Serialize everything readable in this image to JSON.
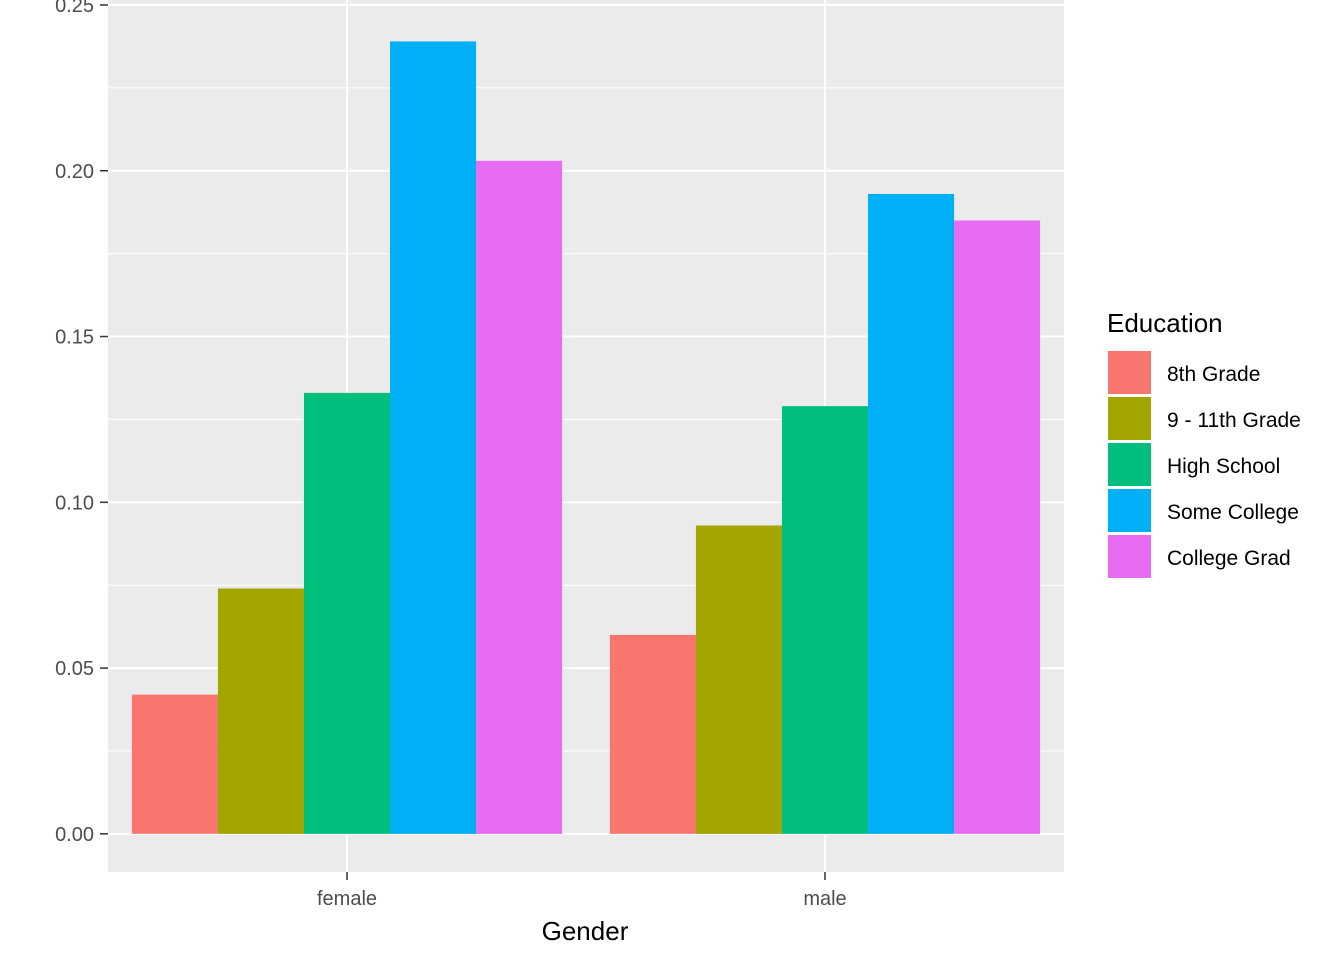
{
  "chart_data": {
    "type": "bar",
    "title": "",
    "xlabel": "Gender",
    "ylabel": "",
    "categories": [
      "female",
      "male"
    ],
    "ylim": [
      -0.0115,
      0.2515
    ],
    "yticks": [
      "0.00",
      "0.05",
      "0.10",
      "0.15",
      "0.20",
      "0.25"
    ],
    "ytick_values": [
      0,
      0.05,
      0.1,
      0.15,
      0.2,
      0.25
    ],
    "grid": true,
    "legend": {
      "title": "Education",
      "position": "right"
    },
    "series": [
      {
        "name": "8th Grade",
        "color": "#F8766D",
        "values": [
          0.042,
          0.06
        ]
      },
      {
        "name": "9 - 11th Grade",
        "color": "#A3A500",
        "values": [
          0.074,
          0.093
        ]
      },
      {
        "name": "High School",
        "color": "#00BF7D",
        "values": [
          0.133,
          0.129
        ]
      },
      {
        "name": "Some College",
        "color": "#00B0F6",
        "values": [
          0.239,
          0.193
        ]
      },
      {
        "name": "College Grad",
        "color": "#E76BF3",
        "values": [
          0.203,
          0.185
        ]
      }
    ]
  }
}
